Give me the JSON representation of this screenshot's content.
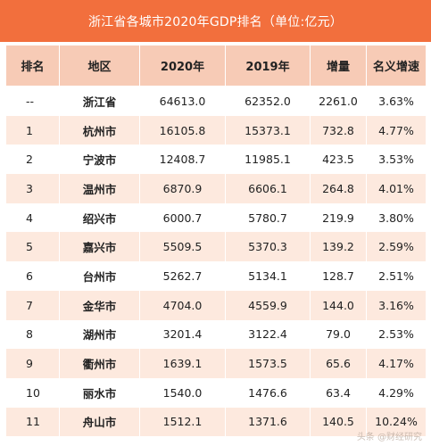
{
  "title": "浙江省各城市2020年GDP排名（单位:亿元）",
  "headers": {
    "rank": "排名",
    "region": "地区",
    "y2020": "2020年",
    "y2019": "2019年",
    "increase": "增量",
    "growth": "名义增速"
  },
  "rows": [
    {
      "rank": "--",
      "region": "浙江省",
      "y2020": "64613.0",
      "y2019": "62352.0",
      "increase": "2261.0",
      "growth": "3.63%"
    },
    {
      "rank": "1",
      "region": "杭州市",
      "y2020": "16105.8",
      "y2019": "15373.1",
      "increase": "732.8",
      "growth": "4.77%"
    },
    {
      "rank": "2",
      "region": "宁波市",
      "y2020": "12408.7",
      "y2019": "11985.1",
      "increase": "423.5",
      "growth": "3.53%"
    },
    {
      "rank": "3",
      "region": "温州市",
      "y2020": "6870.9",
      "y2019": "6606.1",
      "increase": "264.8",
      "growth": "4.01%"
    },
    {
      "rank": "4",
      "region": "绍兴市",
      "y2020": "6000.7",
      "y2019": "5780.7",
      "increase": "219.9",
      "growth": "3.80%"
    },
    {
      "rank": "5",
      "region": "嘉兴市",
      "y2020": "5509.5",
      "y2019": "5370.3",
      "increase": "139.2",
      "growth": "2.59%"
    },
    {
      "rank": "6",
      "region": "台州市",
      "y2020": "5262.7",
      "y2019": "5134.1",
      "increase": "128.7",
      "growth": "2.51%"
    },
    {
      "rank": "7",
      "region": "金华市",
      "y2020": "4704.0",
      "y2019": "4559.9",
      "increase": "144.0",
      "growth": "3.16%"
    },
    {
      "rank": "8",
      "region": "湖州市",
      "y2020": "3201.4",
      "y2019": "3122.4",
      "increase": "79.0",
      "growth": "2.53%"
    },
    {
      "rank": "9",
      "region": "衢州市",
      "y2020": "1639.1",
      "y2019": "1573.5",
      "increase": "65.6",
      "growth": "4.17%"
    },
    {
      "rank": "10",
      "region": "丽水市",
      "y2020": "1540.0",
      "y2019": "1476.6",
      "increase": "63.4",
      "growth": "4.29%"
    },
    {
      "rank": "11",
      "region": "舟山市",
      "y2020": "1512.1",
      "y2019": "1371.6",
      "increase": "140.5",
      "growth": "10.24%"
    }
  ],
  "watermark": "头条 @财经研究",
  "colors": {
    "title_bar": "#f26f3d",
    "header_bg": "#f7cbb6",
    "alt_row_bg": "#fde9de"
  }
}
